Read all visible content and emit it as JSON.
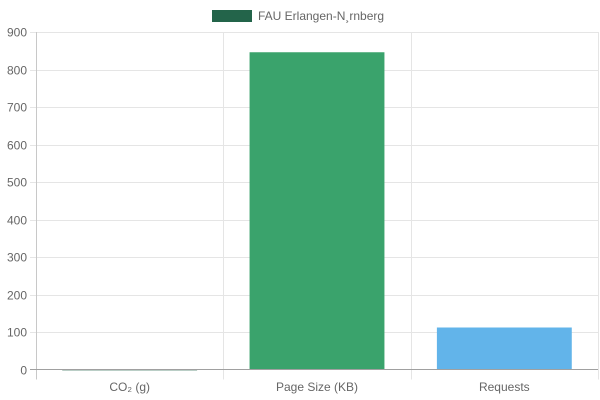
{
  "chart_data": {
    "type": "bar",
    "categories": [
      "CO₂ (g)",
      "Page Size (KB)",
      "Requests"
    ],
    "values": [
      0.5,
      846,
      112
    ],
    "bar_colors": [
      "#23644a",
      "#3aa36c",
      "#62b4ea"
    ],
    "series": [
      {
        "name": "FAU Erlangen-N¸rnberg",
        "color": "#23644a"
      }
    ],
    "ylim": [
      0,
      900
    ],
    "yticks": [
      "0",
      "100",
      "200",
      "300",
      "400",
      "500",
      "600",
      "700",
      "800",
      "900"
    ],
    "grid": true,
    "legend_position": "top-center"
  }
}
